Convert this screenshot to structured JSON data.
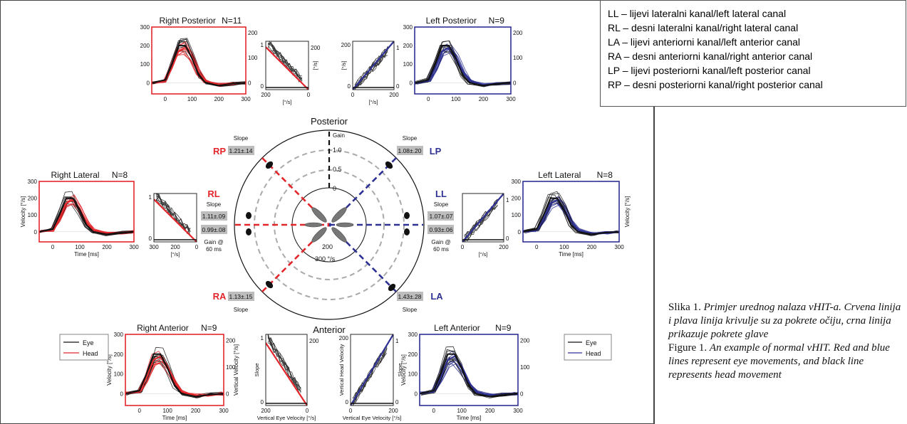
{
  "legend_box": {
    "items": [
      "LL – lijevi lateralni kanal/left lateral canal",
      "RL – desni lateralni kanal/right lateral canal",
      "LA – lijevi anteriorni kanal/left anterior canal",
      "RA – desni anteriorni kanal/right anterior canal",
      "LP – lijevi posteriorni kanal/left posterior canal",
      "RP – desni posteriorni kanal/right posterior canal"
    ]
  },
  "caption": {
    "hr_label": "Slika 1.",
    "hr_text": "Primjer urednog nalaza vHIT-a. Crvena linija i plava linija krivulje su za pokrete očiju, crna linija prikazuje pokrete glave",
    "en_label": "Figure 1.",
    "en_text": "An example of normal vHIT. Red and blue lines represent eye movements, and black line represents head movement"
  },
  "colors": {
    "red": "#e3262b",
    "blue": "#2e3192",
    "black": "#111111",
    "grey": "#999999",
    "label_bg": "#bdbdbd"
  },
  "polar": {
    "posterior_label": "Posterior",
    "anterior_label": "Anterior",
    "gain_label": "Gain",
    "gain_ticks": [
      "1.0",
      "0.5",
      "0"
    ],
    "velocity_ticks": [
      "200",
      "300 °/s"
    ],
    "canals": [
      {
        "id": "RP",
        "slope": "1.21±.14",
        "slope_label": "Slope"
      },
      {
        "id": "LP",
        "slope": "1.08±.20",
        "slope_label": "Slope"
      },
      {
        "id": "RA",
        "slope": "1.13±.15",
        "slope_label": "Slope"
      },
      {
        "id": "LA",
        "slope": "1.43±.28",
        "slope_label": "Slope"
      },
      {
        "id": "RL",
        "slope_label": "Slope",
        "slope": "1.11±.09",
        "gain60": "0.99±.08",
        "gain60_label_1": "Gain @",
        "gain60_label_2": "60 ms"
      },
      {
        "id": "LL",
        "slope_label": "Slope",
        "slope": "1.07±.07",
        "gain60": "0.93±.06",
        "gain60_label_1": "Gain @",
        "gain60_label_2": "60 ms"
      }
    ]
  },
  "panels": {
    "right_posterior": {
      "title": "Right Posterior",
      "n": "N=11",
      "y_ticks": [
        "300",
        "200",
        "100",
        "0"
      ],
      "y_right_ticks": [
        "200",
        "100",
        "0"
      ],
      "x_ticks": [
        "0",
        "100",
        "200",
        "300"
      ]
    },
    "left_posterior": {
      "title": "Left Posterior",
      "n": "N=9",
      "y_ticks": [
        "300",
        "200",
        "100",
        "0"
      ],
      "y_right_ticks": [
        "200",
        "100",
        "0"
      ],
      "x_ticks": [
        "0",
        "100",
        "200",
        "300"
      ]
    },
    "right_lateral": {
      "title": "Right Lateral",
      "n": "N=8",
      "ylabel": "Velocity [°/s]",
      "xlabel": "Time [ms]",
      "y_ticks": [
        "300",
        "200",
        "100",
        "0"
      ],
      "x_ticks": [
        "0",
        "100",
        "200",
        "300"
      ]
    },
    "left_lateral": {
      "title": "Left Lateral",
      "n": "N=8",
      "ylabel": "Velocity [°/s]",
      "xlabel": "Time [ms]",
      "y_ticks": [
        "300",
        "200",
        "100",
        "0"
      ],
      "x_ticks": [
        "0",
        "100",
        "200",
        "300"
      ]
    },
    "right_anterior": {
      "title": "Right Anterior",
      "n": "N=9",
      "ylabel": "Velocity [°/s]",
      "ylabel_right": "Vertical Velocity [°/s]",
      "xlabel": "Time [ms]",
      "y_ticks": [
        "300",
        "200",
        "100",
        "0"
      ],
      "y_right_ticks": [
        "200",
        "100",
        "0"
      ],
      "x_ticks": [
        "0",
        "100",
        "200",
        "300"
      ]
    },
    "left_anterior": {
      "title": "Left Anterior",
      "n": "N=9",
      "ylabel": "Velocity [°/s]",
      "xlabel": "Time [ms]",
      "y_ticks": [
        "300",
        "200",
        "100",
        "0"
      ],
      "y_right_ticks": [
        "200",
        "100",
        "0"
      ],
      "x_ticks": [
        "0",
        "100",
        "200",
        "300"
      ]
    }
  },
  "scatter_panels": {
    "rp": {
      "x_ticks": [
        "200",
        "0"
      ],
      "xlabel": "[°/s]",
      "y_left": [
        "1",
        "0"
      ],
      "y_right": [
        "200"
      ],
      "ylabel": "[°/s]"
    },
    "lp": {
      "x_ticks": [
        "0",
        "200"
      ],
      "xlabel": "[°/s]",
      "y_left": [
        "200",
        "0"
      ],
      "y_right": [
        "1",
        "0"
      ],
      "ylabel": "[°/s]"
    },
    "rl": {
      "x_ticks": [
        "300",
        "200",
        "0"
      ],
      "xlabel": "[°/s]",
      "y_left": [
        "1",
        "0"
      ]
    },
    "ll": {
      "x_ticks": [
        "0",
        "200"
      ],
      "xlabel": "[°/s]",
      "y_right": [
        "1",
        "0"
      ]
    },
    "ra": {
      "x_ticks": [
        "200",
        "0"
      ],
      "xlabel": "Vertical Eye Velocity [°/s]",
      "y_left": [
        "1",
        "0"
      ],
      "y_right": [
        "200"
      ],
      "ylabel": "Slope"
    },
    "la": {
      "x_ticks": [
        "0",
        "200"
      ],
      "xlabel": "Vertical Eye Velocity [°/s]",
      "y_left": [
        "200",
        "0"
      ],
      "y_right": [
        "1",
        "0"
      ],
      "ylabel": "Vertical Head Velocity",
      "ylabel_right": "Slope"
    }
  },
  "legends": {
    "left": {
      "eye": "Eye",
      "head": "Head"
    },
    "right": {
      "eye": "Eye",
      "head": "Head"
    }
  },
  "chart_data": {
    "type": "line",
    "x_unit": "ms",
    "y_unit": "°/s",
    "series": [
      {
        "name": "Eye",
        "description_color": "red/blue",
        "x": [
          -50,
          0,
          25,
          50,
          75,
          100,
          125,
          150,
          200,
          250,
          300
        ],
        "values": [
          0,
          10,
          80,
          170,
          190,
          140,
          60,
          10,
          -10,
          -5,
          0
        ]
      },
      {
        "name": "Head",
        "description_color": "black",
        "x": [
          -50,
          0,
          25,
          50,
          75,
          100,
          125,
          150,
          200,
          250,
          300
        ],
        "values": [
          0,
          15,
          100,
          200,
          200,
          130,
          40,
          0,
          -15,
          -5,
          0
        ]
      }
    ]
  }
}
